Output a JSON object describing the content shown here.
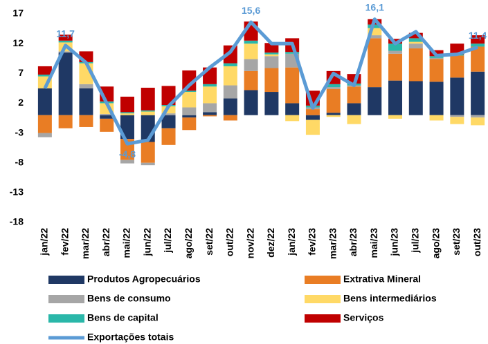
{
  "chart_data": {
    "type": "bar",
    "stacked": true,
    "categories": [
      "jan/22",
      "fev/22",
      "mar/22",
      "abr/22",
      "mai/22",
      "jun/22",
      "jul/22",
      "ago/22",
      "set/22",
      "out/22",
      "nov/22",
      "dez/22",
      "jan/23",
      "fev/23",
      "mar/23",
      "abr/23",
      "mai/23",
      "jun/23",
      "jul/23",
      "ago/23",
      "set/23",
      "out/23"
    ],
    "series": [
      {
        "name": "Produtos Agropecuários",
        "color": "#1f3864",
        "values": [
          4.5,
          10.5,
          4.5,
          -0.6,
          -4.0,
          -4.5,
          -2.2,
          -0.4,
          0.5,
          2.8,
          4.2,
          3.9,
          2.0,
          -0.8,
          0.4,
          2.0,
          4.7,
          5.8,
          5.7,
          5.6,
          6.3,
          7.3
        ]
      },
      {
        "name": "Extrativa Mineral",
        "color": "#e97d24",
        "values": [
          -3.0,
          -2.2,
          -2.0,
          -2.2,
          -3.5,
          -3.5,
          -2.8,
          -2.1,
          -0.2,
          -0.9,
          3.2,
          4.0,
          6.0,
          1.0,
          4.0,
          2.8,
          8.2,
          4.5,
          5.5,
          3.8,
          3.7,
          4.2
        ]
      },
      {
        "name": "Bens de consumo",
        "color": "#a6a6a6",
        "values": [
          -0.7,
          0.2,
          0.7,
          0.2,
          -0.6,
          -0.4,
          0.3,
          1.3,
          1.5,
          2.2,
          2.0,
          2.0,
          2.3,
          0.3,
          0.3,
          0.2,
          0.5,
          0.5,
          0.8,
          0.2,
          -0.3,
          -0.4
        ]
      },
      {
        "name": "Bens intermediários",
        "color": "#ffd966",
        "values": [
          2.0,
          1.5,
          3.5,
          1.8,
          0.3,
          0.6,
          1.2,
          2.6,
          2.8,
          3.2,
          2.6,
          0.3,
          -1.0,
          -2.5,
          -0.3,
          -1.5,
          1.2,
          -0.6,
          0.3,
          -0.9,
          -1.2,
          -1.3
        ]
      },
      {
        "name": "Bens de capital",
        "color": "#2ab7a9",
        "values": [
          0.3,
          0.3,
          0.2,
          0.3,
          0.2,
          0.2,
          0.2,
          0.2,
          0.4,
          0.5,
          0.5,
          0.3,
          0.3,
          0.3,
          0.5,
          0.3,
          0.6,
          1.2,
          0.6,
          0.3,
          0.2,
          0.5
        ]
      },
      {
        "name": "Serviços",
        "color": "#c00000",
        "values": [
          1.4,
          1.0,
          1.8,
          2.5,
          2.6,
          3.8,
          3.2,
          3.4,
          2.8,
          3.0,
          3.2,
          1.6,
          2.3,
          2.5,
          2.2,
          1.6,
          0.9,
          0.8,
          0.9,
          1.0,
          1.8,
          1.4
        ]
      },
      {
        "name": "Exportações totais",
        "type": "line",
        "color": "#5b9bd5",
        "values": [
          4.5,
          11.7,
          8.8,
          2.0,
          -4.8,
          -4.2,
          1.5,
          5.0,
          8.0,
          10.6,
          15.6,
          12.0,
          12.0,
          1.2,
          7.0,
          5.0,
          16.1,
          12.0,
          14.0,
          10.0,
          10.2,
          11.4
        ],
        "value_labels": [
          null,
          "11,7",
          null,
          null,
          "-4,8",
          null,
          null,
          null,
          null,
          null,
          "15,6",
          null,
          null,
          null,
          null,
          null,
          "16,1",
          null,
          null,
          null,
          null,
          "11,4"
        ]
      }
    ],
    "ylim": [
      -18,
      17
    ],
    "yticks": [
      17,
      12,
      7,
      2,
      -3,
      -8,
      -13,
      -18
    ],
    "grid": false
  }
}
